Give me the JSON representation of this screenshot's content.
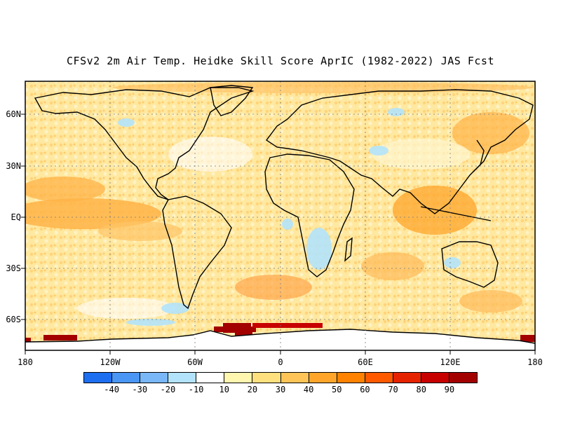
{
  "title": "CFSv2 2m Air Temp. Heidke Skill Score AprIC (1982-2022) JAS Fcst",
  "lat_labels": [
    "60N",
    "30N",
    "EQ",
    "30S",
    "60S"
  ],
  "lon_labels": [
    "180",
    "120W",
    "60W",
    "0",
    "60E",
    "120E",
    "180"
  ],
  "colorbar": {
    "colors": [
      "#1e6ff0",
      "#4a96f5",
      "#7ab7f8",
      "#b3e3fb",
      "#ffffff",
      "#fff6b0",
      "#ffe07e",
      "#ffc457",
      "#ffa52b",
      "#ff8200",
      "#ff5a00",
      "#e52300",
      "#c70000",
      "#a30000"
    ],
    "labels": [
      "-40",
      "-30",
      "-20",
      "-10",
      "10",
      "20",
      "30",
      "40",
      "50",
      "60",
      "70",
      "80",
      "90"
    ]
  }
}
